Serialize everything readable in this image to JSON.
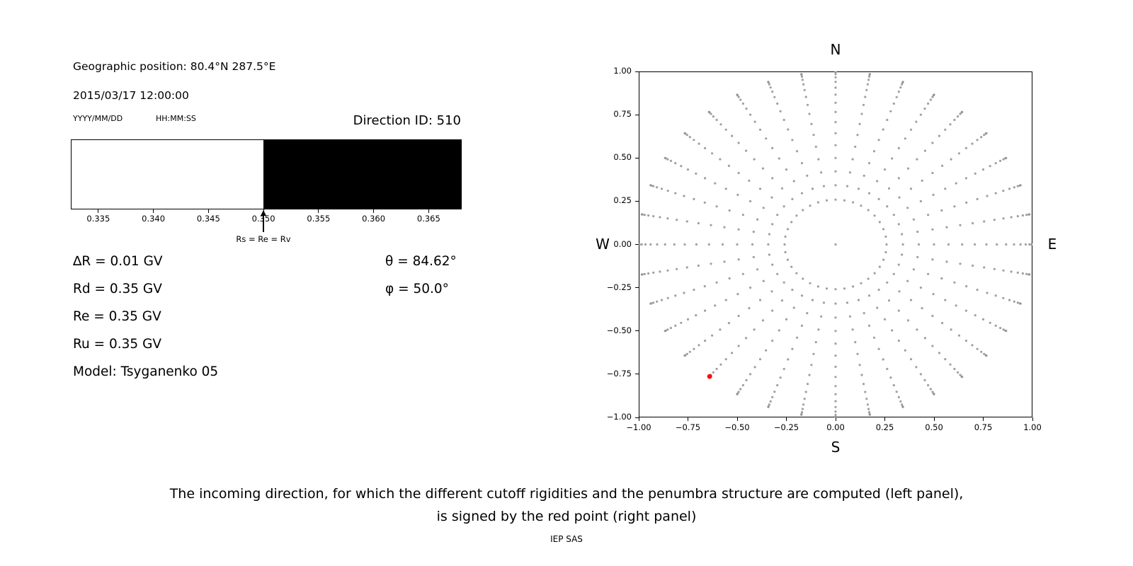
{
  "header": {
    "geo_position": "Geographic position: 80.4°N 287.5°E",
    "datetime": "2015/03/17 12:00:00",
    "date_format_hint": "YYYY/MM/DD",
    "time_format_hint": "HH:MM:SS",
    "direction_id": "Direction ID: 510"
  },
  "penumbra": {
    "arrow_label": "Rs = Re = Rv"
  },
  "info": {
    "delta_r": "∆R = 0.01 GV",
    "rd": "Rd = 0.35 GV",
    "re": "Re = 0.35 GV",
    "ru": "Ru = 0.35 GV",
    "model": "Model: Tsyganenko 05",
    "theta": "θ = 84.62°",
    "phi": "φ = 50.0°"
  },
  "compass": {
    "north": "N",
    "south": "S",
    "east": "E",
    "west": "W"
  },
  "caption": {
    "line1": "The incoming direction, for which the different cutoff rigidities and the penumbra structure are computed (left panel),",
    "line2": "is signed by the red point (right panel)",
    "credit": "IEP SAS"
  },
  "chart_data": [
    {
      "type": "bar",
      "name": "penumbra-structure",
      "xlim": [
        0.3325,
        0.368
      ],
      "x_ticks": [
        "0.335",
        "0.340",
        "0.345",
        "0.350",
        "0.355",
        "0.360",
        "0.365"
      ],
      "x_tick_values": [
        0.335,
        0.34,
        0.345,
        0.35,
        0.355,
        0.36,
        0.365
      ],
      "segments": [
        {
          "from": 0.3325,
          "to": 0.35,
          "color": "#ffffff"
        },
        {
          "from": 0.35,
          "to": 0.368,
          "color": "#000000"
        }
      ],
      "arrow": {
        "x": 0.35,
        "label": "Rs = Re = Rv"
      },
      "values": {
        "delta_R_GV": 0.01,
        "Rd_GV": 0.35,
        "Re_GV": 0.35,
        "Ru_GV": 0.35,
        "theta_deg": 84.62,
        "phi_deg": 50.0,
        "model": "Tsyganenko 05"
      }
    },
    {
      "type": "scatter",
      "name": "incoming-direction-map",
      "xlim": [
        -1,
        1
      ],
      "ylim": [
        -1,
        1
      ],
      "x_ticks": [
        "−1.00",
        "−0.75",
        "−0.50",
        "−0.25",
        "0.00",
        "0.25",
        "0.50",
        "0.75",
        "1.00"
      ],
      "y_ticks": [
        "1.00",
        "0.75",
        "0.50",
        "0.25",
        "0.00",
        "−0.25",
        "−0.50",
        "−0.75",
        "−1.00"
      ],
      "compass_labels": {
        "top": "N",
        "bottom": "S",
        "left": "W",
        "right": "E"
      },
      "grid": false,
      "direction_grid": {
        "azimuth_deg_start": 0,
        "azimuth_deg_stop": 350,
        "azimuth_deg_step": 10,
        "zenith_deg_start": 15,
        "zenith_deg_stop": 90,
        "zenith_deg_step": 5,
        "radius_rule": "sin(zenith)",
        "includes_center_point": true,
        "color": "#8f8f8f",
        "opacity": 0.85,
        "dot_radius_px": 1.6
      },
      "highlight_point": {
        "x": -0.64,
        "y": -0.763,
        "azimuth_deg": 220,
        "zenith_deg": 84.62,
        "color": "#ff0000",
        "dot_radius_px": 3.4
      }
    }
  ]
}
